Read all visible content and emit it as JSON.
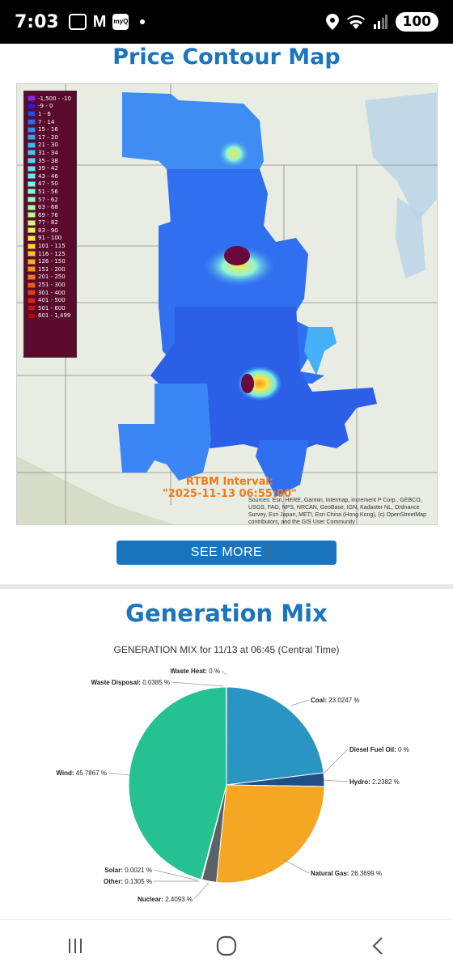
{
  "status": {
    "time": "7:03",
    "notif_icons": [
      "screenshot-icon",
      "gmail-icon",
      "myq-icon"
    ],
    "myq_label": "myQ",
    "battery": "100"
  },
  "price_map": {
    "title": "Price Contour Map",
    "legend": [
      {
        "label": "-1,500 - -10",
        "color": "#8a2be2"
      },
      {
        "label": "-9 - 0",
        "color": "#3a1ad0"
      },
      {
        "label": "1 - 6",
        "color": "#2b4de8"
      },
      {
        "label": "7 - 14",
        "color": "#2f6ff0"
      },
      {
        "label": "15 - 16",
        "color": "#3a86f5"
      },
      {
        "label": "17 - 20",
        "color": "#3f9cf7"
      },
      {
        "label": "21 - 30",
        "color": "#45b0f8"
      },
      {
        "label": "31 - 34",
        "color": "#4ec4f8"
      },
      {
        "label": "35 - 38",
        "color": "#58d5f7"
      },
      {
        "label": "39 - 42",
        "color": "#63e2f3"
      },
      {
        "label": "43 - 46",
        "color": "#70ecee"
      },
      {
        "label": "47 - 50",
        "color": "#7ef2e4"
      },
      {
        "label": "51 - 56",
        "color": "#8ff6d4"
      },
      {
        "label": "57 - 62",
        "color": "#a0f8c2"
      },
      {
        "label": "63 - 68",
        "color": "#b3f8ac"
      },
      {
        "label": "69 - 76",
        "color": "#c7f795"
      },
      {
        "label": "77 - 82",
        "color": "#daf47d"
      },
      {
        "label": "83 - 90",
        "color": "#eaef62"
      },
      {
        "label": "91 - 100",
        "color": "#f6e64a"
      },
      {
        "label": "101 - 115",
        "color": "#fcd63b"
      },
      {
        "label": "116 - 125",
        "color": "#fdc232"
      },
      {
        "label": "126 - 150",
        "color": "#fdab2b"
      },
      {
        "label": "151 - 200",
        "color": "#fb9124"
      },
      {
        "label": "201 - 250",
        "color": "#f6761e"
      },
      {
        "label": "251 - 300",
        "color": "#ee5a19"
      },
      {
        "label": "301 - 400",
        "color": "#e33f16"
      },
      {
        "label": "401 - 500",
        "color": "#d62614"
      },
      {
        "label": "501 - 600",
        "color": "#c51412"
      },
      {
        "label": "601 - 1,499",
        "color": "#b00a10"
      }
    ],
    "interval_title": "RTBM Interval:",
    "interval_value": "\"2025-11-13 06:55:00\"",
    "sources": "Sources: Esri, HERE, Garmin, Intermap, increment P Corp., GEBCO, USGS, FAO, NPS, NRCAN, GeoBase, IGN, Kadaster NL, Ordnance Survey, Esri Japan, METI, Esri China (Hong Kong), (c) OpenStreetMap contributors, and the GIS User Community",
    "button": "SEE MORE"
  },
  "generation": {
    "title": "Generation Mix",
    "subtitle": "GENERATION MIX for 11/13 at 06:45 (Central Time)"
  },
  "chart_data": {
    "type": "pie",
    "title": "GENERATION MIX for 11/13 at 06:45 (Central Time)",
    "slices": [
      {
        "name": "Waste Heat",
        "value": 0,
        "label": "0 %",
        "color": "#2a8fc4"
      },
      {
        "name": "Coal",
        "value": 23.0247,
        "label": "23.0247 %",
        "color": "#2a94c2"
      },
      {
        "name": "Diesel Fuel Oil",
        "value": 0,
        "label": "0 %",
        "color": "#1d4f8a"
      },
      {
        "name": "Hydro",
        "value": 2.2382,
        "label": "2.2382 %",
        "color": "#1f4f86"
      },
      {
        "name": "Natural Gas",
        "value": 26.3699,
        "label": "26.3699 %",
        "color": "#f5a623"
      },
      {
        "name": "Nuclear",
        "value": 2.4093,
        "label": "2.4093 %",
        "color": "#5a6268"
      },
      {
        "name": "Other",
        "value": 0.1305,
        "label": "0.1305 %",
        "color": "#8e44ad"
      },
      {
        "name": "Solar",
        "value": 0.0021,
        "label": "0.0021 %",
        "color": "#f1c40f"
      },
      {
        "name": "Wind",
        "value": 45.7867,
        "label": "45.7867 %",
        "color": "#26c191"
      },
      {
        "name": "Waste Disposal",
        "value": 0.0385,
        "label": "0.0385 %",
        "color": "#7f8c8d"
      }
    ]
  }
}
